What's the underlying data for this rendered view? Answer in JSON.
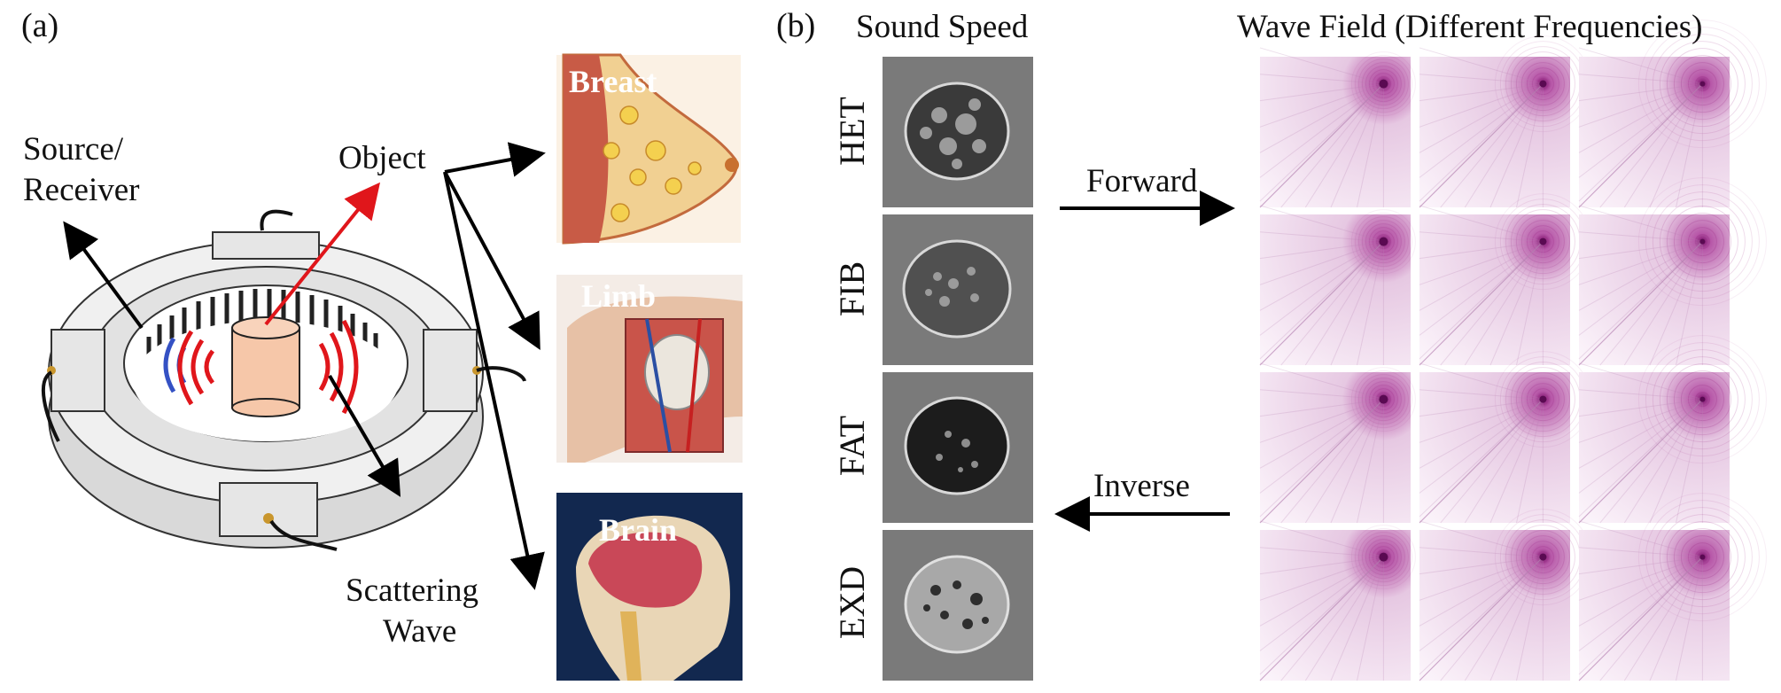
{
  "panel_a": {
    "letter": "(a)",
    "source_receiver": [
      "Source/",
      "Receiver"
    ],
    "object_label": "Object",
    "scattering_wave": [
      "Scattering",
      "Wave"
    ],
    "cards": [
      {
        "title": "Breast",
        "colors": {
          "bg": "#f3d7b0",
          "accent": "#d67a48"
        }
      },
      {
        "title": "Limb",
        "colors": {
          "bg": "#e8d6cc",
          "accent": "#b65a4a"
        }
      },
      {
        "title": "Brain",
        "colors": {
          "bg": "#12284f",
          "accent": "#c8515a"
        }
      }
    ]
  },
  "panel_b": {
    "letter": "(b)",
    "sound_speed_header": "Sound Speed",
    "wave_field_header": "Wave Field (Different Frequencies)",
    "rows": [
      "HET",
      "FIB",
      "FAT",
      "EXD"
    ],
    "forward_label": "Forward",
    "inverse_label": "Inverse",
    "wave_color": "#a0308a"
  }
}
